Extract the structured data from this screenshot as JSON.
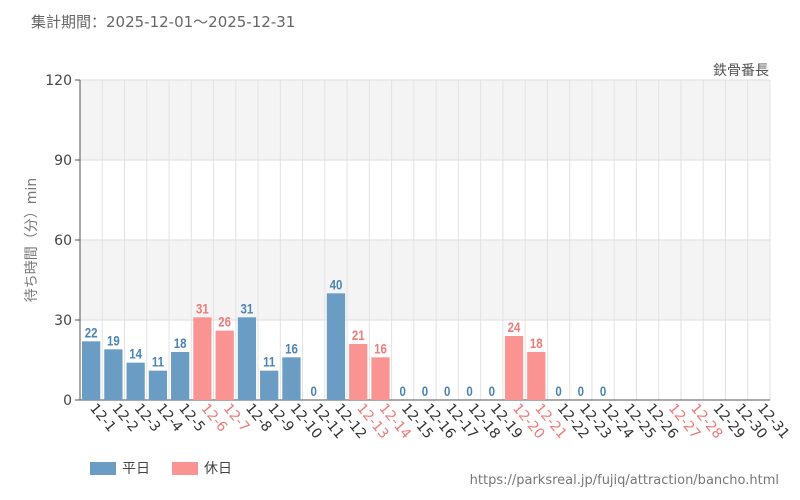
{
  "header": {
    "period_text": "集計期間：2025-12-01～2025-12-31",
    "attraction_name": "鉄骨番長"
  },
  "legend": {
    "weekday_label": "平日",
    "holiday_label": "休日"
  },
  "footer": {
    "source_url": "https://parksreal.jp/fujiq/attraction/bancho.html"
  },
  "colors": {
    "weekday": "#6b9cc3",
    "holiday": "#f99493",
    "weekday_text": "#4a84b4",
    "holiday_text": "#f07a78"
  },
  "chart_data": {
    "type": "bar",
    "title": "集計期間：2025-12-01～2025-12-31",
    "subtitle": "鉄骨番長",
    "xlabel": "",
    "ylabel": "待ち時間（分）min",
    "ylim": [
      0,
      120
    ],
    "yticks": [
      0,
      30,
      60,
      90,
      120
    ],
    "grid": true,
    "legend_position": "bottom-left",
    "categories": [
      "12-1",
      "12-2",
      "12-3",
      "12-4",
      "12-5",
      "12-6",
      "12-7",
      "12-8",
      "12-9",
      "12-10",
      "12-11",
      "12-12",
      "12-13",
      "12-14",
      "12-15",
      "12-16",
      "12-17",
      "12-18",
      "12-19",
      "12-20",
      "12-21",
      "12-22",
      "12-23",
      "12-24",
      "12-25",
      "12-26",
      "12-27",
      "12-28",
      "12-29",
      "12-30",
      "12-31"
    ],
    "values": [
      22,
      19,
      14,
      11,
      18,
      31,
      26,
      31,
      11,
      16,
      0,
      40,
      21,
      16,
      0,
      0,
      0,
      0,
      0,
      24,
      18,
      0,
      0,
      0,
      null,
      null,
      null,
      null,
      null,
      null,
      null
    ],
    "holiday": [
      false,
      false,
      false,
      false,
      false,
      true,
      true,
      false,
      false,
      false,
      false,
      false,
      true,
      true,
      false,
      false,
      false,
      false,
      false,
      true,
      true,
      false,
      false,
      false,
      false,
      false,
      true,
      true,
      false,
      false,
      false
    ],
    "series": [
      {
        "name": "平日",
        "kind": "weekday"
      },
      {
        "name": "休日",
        "kind": "holiday"
      }
    ]
  }
}
